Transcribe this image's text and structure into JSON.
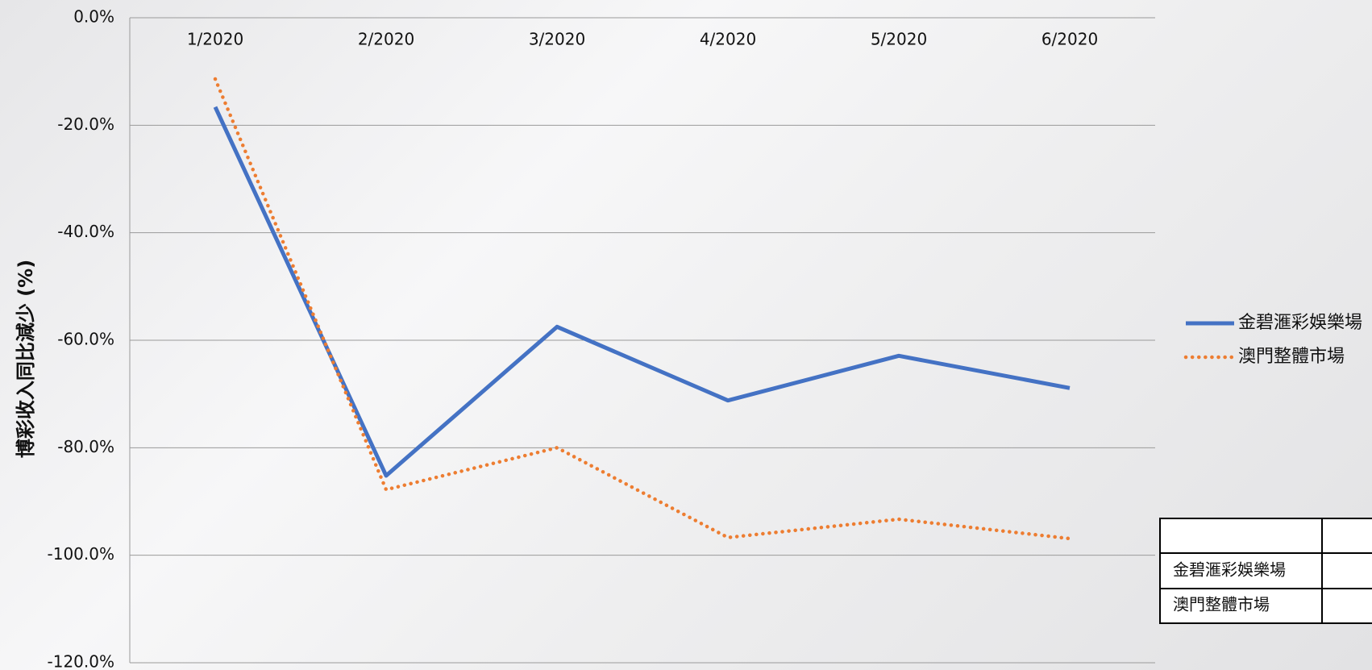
{
  "chart_data": {
    "type": "line",
    "y_label": "博彩收入同比減少 (%)",
    "categories": [
      "1/2020",
      "2/2020",
      "3/2020",
      "4/2020",
      "5/2020",
      "6/2020"
    ],
    "series": [
      {
        "name": "金碧滙彩娛樂場",
        "color": "#4472c4",
        "style": "solid",
        "values": [
          -16.6,
          -85.2,
          -57.5,
          -71.2,
          -62.9,
          -68.9
        ]
      },
      {
        "name": "澳門整體市場",
        "color": "#ed7d31",
        "style": "dotted",
        "values": [
          -11.4,
          -87.8,
          -80.0,
          -96.7,
          -93.3,
          -96.9
        ]
      }
    ],
    "ylim": [
      -120,
      0
    ],
    "yticks": [
      {
        "value": 0,
        "label": "0.0%"
      },
      {
        "value": -20,
        "label": "-20.0%"
      },
      {
        "value": -40,
        "label": "-40.0%"
      },
      {
        "value": -60,
        "label": "-60.0%"
      },
      {
        "value": -80,
        "label": "-80.0%"
      },
      {
        "value": -100,
        "label": "-100.0%"
      },
      {
        "value": -120,
        "label": "-120.0%"
      }
    ],
    "grid": true,
    "legend": "right"
  }
}
